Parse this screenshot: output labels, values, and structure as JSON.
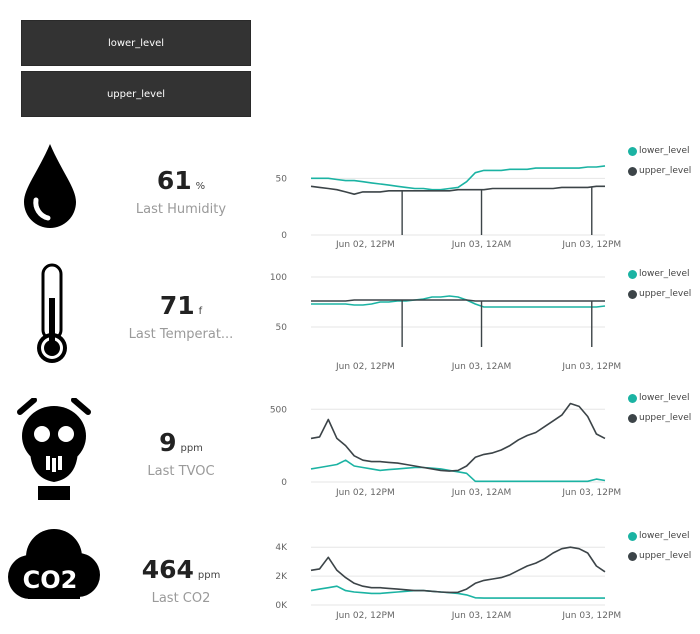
{
  "buttons": {
    "lower": "lower_level",
    "upper": "upper_level"
  },
  "colors": {
    "lower_level": "#1bb3a3",
    "upper_level": "#3c4448",
    "tile": "#333333"
  },
  "icons": {
    "humidity": "water-drop-icon",
    "temperature": "thermometer-icon",
    "tvoc": "gas-mask-icon",
    "co2": "co2-cloud-icon",
    "co2_text": "CO2"
  },
  "cards": [
    {
      "value": "61",
      "unit": "%",
      "label": "Last Humidity"
    },
    {
      "value": "71",
      "unit": "f",
      "label": "Last Temperat..."
    },
    {
      "value": "9",
      "unit": "ppm",
      "label": "Last TVOC"
    },
    {
      "value": "464",
      "unit": "ppm",
      "label": "Last CO2"
    }
  ],
  "chart_data": [
    {
      "type": "line",
      "x_ticks": [
        "Jun 02, 12PM",
        "Jun 03, 12AM",
        "Jun 03, 12PM"
      ],
      "y_ticks": [
        "0",
        "50"
      ],
      "ylim": [
        0,
        75
      ],
      "grid": true,
      "legend_position": "top-right",
      "series": [
        {
          "name": "lower_level",
          "values": [
            50,
            50,
            50,
            49,
            48,
            48,
            47,
            46,
            45,
            44,
            43,
            42,
            41,
            41,
            40,
            40,
            41,
            42,
            47,
            55,
            57,
            57,
            57,
            58,
            58,
            58,
            59,
            59,
            59,
            59,
            59,
            59,
            60,
            60,
            61
          ]
        },
        {
          "name": "upper_level",
          "values": [
            43,
            42,
            41,
            40,
            38,
            36,
            38,
            38,
            38,
            39,
            39,
            39,
            39,
            39,
            39,
            39,
            39,
            40,
            40,
            40,
            40,
            41,
            41,
            41,
            41,
            41,
            41,
            41,
            41,
            42,
            42,
            42,
            42,
            43,
            43
          ]
        }
      ]
    },
    {
      "type": "line",
      "x_ticks": [
        "Jun 02, 12PM",
        "Jun 03, 12AM",
        "Jun 03, 12PM"
      ],
      "y_ticks": [
        "50",
        "100"
      ],
      "ylim": [
        30,
        105
      ],
      "grid": true,
      "legend_position": "top-right",
      "series": [
        {
          "name": "lower_level",
          "values": [
            73,
            73,
            73,
            73,
            73,
            72,
            72,
            73,
            75,
            75,
            76,
            76,
            77,
            78,
            80,
            80,
            81,
            80,
            77,
            73,
            70,
            70,
            70,
            70,
            70,
            70,
            70,
            70,
            70,
            70,
            70,
            70,
            70,
            70,
            71
          ]
        },
        {
          "name": "upper_level",
          "values": [
            76,
            76,
            76,
            76,
            76,
            77,
            77,
            77,
            77,
            77,
            77,
            77,
            77,
            77,
            77,
            77,
            77,
            77,
            77,
            76,
            76,
            76,
            76,
            76,
            76,
            76,
            76,
            76,
            76,
            76,
            76,
            76,
            76,
            76,
            76
          ]
        }
      ]
    },
    {
      "type": "line",
      "x_ticks": [
        "Jun 02, 12PM",
        "Jun 03, 12AM",
        "Jun 03, 12PM"
      ],
      "y_ticks": [
        "0",
        "500"
      ],
      "ylim": [
        0,
        550
      ],
      "grid": true,
      "legend_position": "top-right",
      "series": [
        {
          "name": "lower_level",
          "values": [
            90,
            100,
            110,
            120,
            150,
            110,
            100,
            90,
            80,
            85,
            90,
            95,
            100,
            100,
            95,
            90,
            80,
            70,
            60,
            5,
            5,
            5,
            5,
            5,
            5,
            5,
            5,
            5,
            5,
            5,
            5,
            5,
            5,
            20,
            10
          ]
        },
        {
          "name": "upper_level",
          "values": [
            300,
            310,
            430,
            300,
            250,
            180,
            150,
            140,
            140,
            135,
            130,
            120,
            110,
            100,
            90,
            80,
            75,
            80,
            110,
            170,
            190,
            200,
            220,
            250,
            290,
            320,
            340,
            380,
            420,
            460,
            540,
            520,
            450,
            330,
            300
          ]
        }
      ]
    },
    {
      "type": "line",
      "x_ticks": [
        "Jun 02, 12PM",
        "Jun 03, 12AM",
        "Jun 03, 12PM"
      ],
      "y_ticks": [
        "0K",
        "2K",
        "4K"
      ],
      "ylim": [
        0,
        4500
      ],
      "grid": true,
      "legend_position": "top-right",
      "series": [
        {
          "name": "lower_level",
          "values": [
            1000,
            1100,
            1200,
            1300,
            1000,
            900,
            850,
            800,
            800,
            850,
            900,
            950,
            1000,
            1000,
            950,
            900,
            850,
            800,
            700,
            500,
            480,
            480,
            480,
            480,
            480,
            480,
            480,
            480,
            480,
            480,
            480,
            480,
            480,
            480,
            480
          ]
        },
        {
          "name": "upper_level",
          "values": [
            2400,
            2500,
            3300,
            2400,
            1900,
            1500,
            1300,
            1200,
            1200,
            1150,
            1100,
            1050,
            1000,
            1000,
            950,
            900,
            870,
            880,
            1100,
            1500,
            1700,
            1800,
            1900,
            2100,
            2400,
            2700,
            2900,
            3200,
            3600,
            3900,
            4000,
            3900,
            3600,
            2700,
            2300
          ]
        }
      ]
    }
  ]
}
